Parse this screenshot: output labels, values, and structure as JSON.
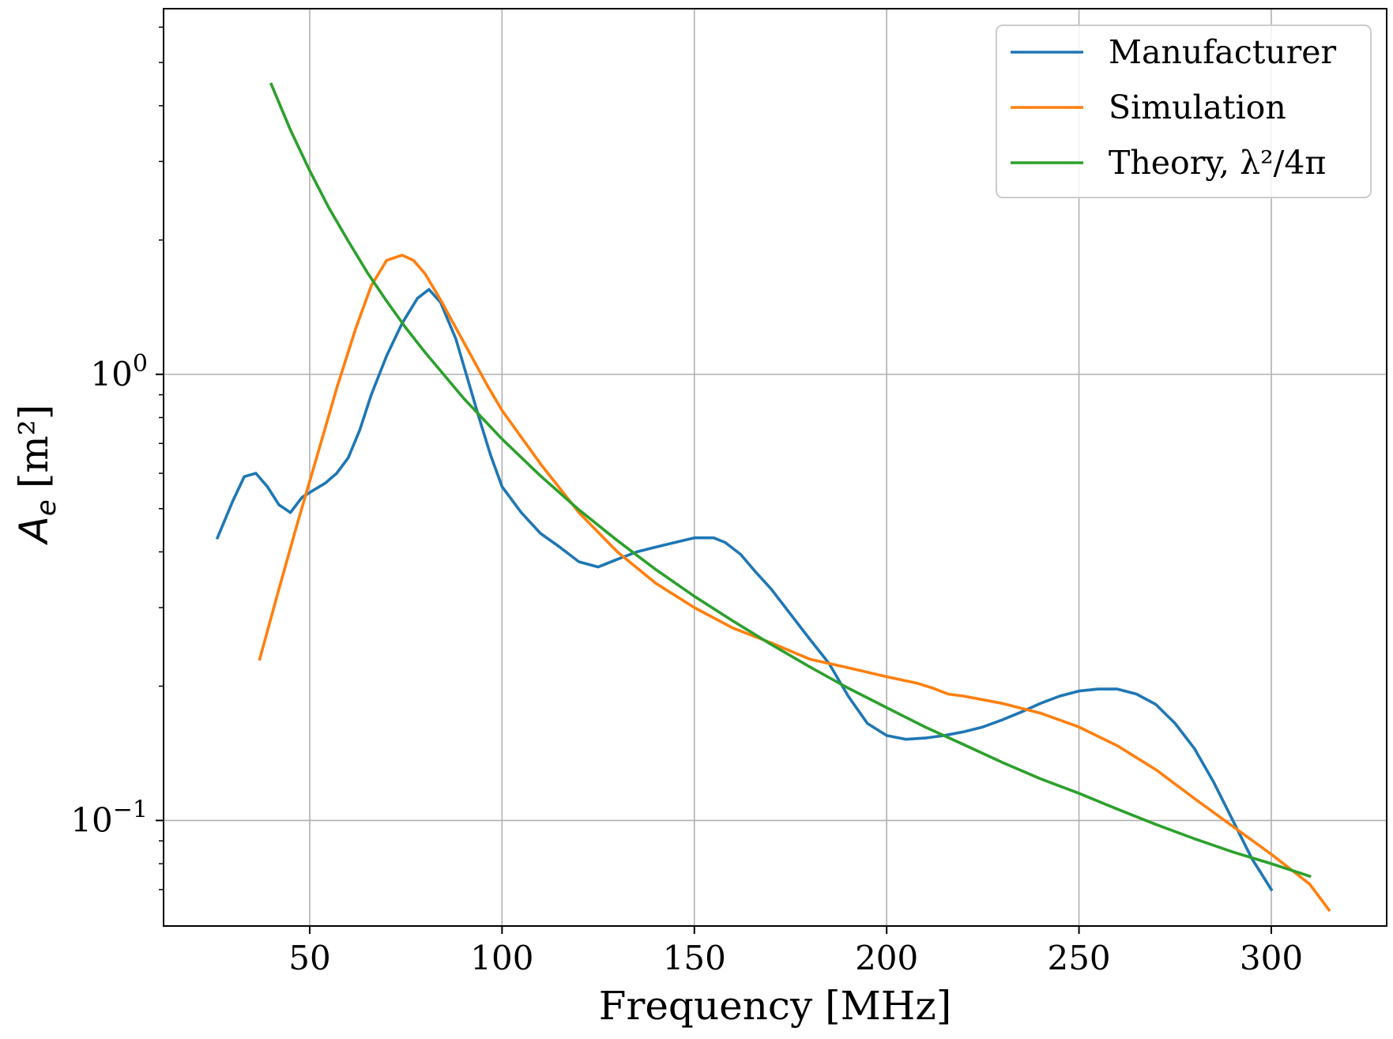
{
  "chart_data": {
    "type": "line",
    "xlabel": "Frequency [MHz]",
    "ylabel": {
      "symbol": "A",
      "subscript": "e",
      "unit": "[m²]"
    },
    "xlim": [
      12,
      330
    ],
    "ylim": [
      0.058,
      6.6
    ],
    "yscale": "log",
    "grid": true,
    "legend_position": "top-right",
    "x_ticks": [
      {
        "value": 50,
        "label": "50"
      },
      {
        "value": 100,
        "label": "100"
      },
      {
        "value": 150,
        "label": "150"
      },
      {
        "value": 200,
        "label": "200"
      },
      {
        "value": 250,
        "label": "250"
      },
      {
        "value": 300,
        "label": "300"
      }
    ],
    "y_ticks": [
      {
        "value": 1,
        "base": "10",
        "exp": "0"
      },
      {
        "value": 0.1,
        "base": "10",
        "exp": "−1"
      }
    ],
    "y_minor_ticks": [
      0.07,
      0.08,
      0.09,
      0.2,
      0.3,
      0.4,
      0.5,
      0.6,
      0.7,
      0.8,
      0.9,
      2,
      3,
      4,
      5,
      6
    ],
    "series": [
      {
        "name": "Manufacturer",
        "color": "#1f77b4",
        "x": [
          26,
          30,
          33,
          36,
          39,
          42,
          45,
          48,
          51,
          54,
          57,
          60,
          63,
          66,
          70,
          74,
          78,
          81,
          84,
          88,
          91,
          94,
          97,
          100,
          105,
          110,
          115,
          120,
          125,
          130,
          135,
          140,
          145,
          150,
          155,
          158,
          162,
          166,
          170,
          175,
          180,
          185,
          190,
          195,
          200,
          205,
          210,
          215,
          220,
          225,
          230,
          235,
          240,
          245,
          250,
          255,
          260,
          265,
          270,
          275,
          280,
          285,
          290,
          295,
          297,
          300
        ],
        "y": [
          0.43,
          0.52,
          0.59,
          0.6,
          0.56,
          0.51,
          0.49,
          0.53,
          0.55,
          0.57,
          0.6,
          0.65,
          0.75,
          0.9,
          1.1,
          1.3,
          1.48,
          1.55,
          1.45,
          1.2,
          0.98,
          0.8,
          0.66,
          0.56,
          0.49,
          0.44,
          0.41,
          0.38,
          0.37,
          0.385,
          0.4,
          0.41,
          0.42,
          0.43,
          0.43,
          0.42,
          0.395,
          0.36,
          0.33,
          0.29,
          0.255,
          0.225,
          0.19,
          0.165,
          0.155,
          0.152,
          0.153,
          0.155,
          0.158,
          0.162,
          0.168,
          0.175,
          0.183,
          0.19,
          0.195,
          0.197,
          0.197,
          0.192,
          0.182,
          0.165,
          0.145,
          0.122,
          0.1,
          0.082,
          0.077,
          0.07
        ]
      },
      {
        "name": "Simulation",
        "color": "#ff7f0e",
        "x": [
          37,
          42,
          47,
          52,
          57,
          62,
          66,
          70,
          74,
          77,
          80,
          84,
          88,
          92,
          96,
          100,
          110,
          120,
          130,
          140,
          150,
          160,
          170,
          180,
          190,
          200,
          208,
          212,
          216,
          220,
          230,
          240,
          250,
          260,
          270,
          280,
          290,
          300,
          310,
          315
        ],
        "y": [
          0.23,
          0.33,
          0.47,
          0.66,
          0.93,
          1.27,
          1.58,
          1.8,
          1.85,
          1.8,
          1.68,
          1.47,
          1.27,
          1.1,
          0.95,
          0.83,
          0.63,
          0.49,
          0.4,
          0.34,
          0.3,
          0.27,
          0.25,
          0.23,
          0.22,
          0.21,
          0.203,
          0.198,
          0.192,
          0.19,
          0.183,
          0.174,
          0.162,
          0.147,
          0.13,
          0.112,
          0.097,
          0.084,
          0.072,
          0.063
        ]
      },
      {
        "name": "Theory, λ²/4π",
        "color": "#2ca02c",
        "x": [
          40,
          45,
          50,
          55,
          60,
          65,
          70,
          75,
          80,
          90,
          100,
          110,
          120,
          130,
          140,
          150,
          160,
          170,
          180,
          190,
          200,
          210,
          220,
          230,
          240,
          250,
          260,
          270,
          280,
          290,
          300,
          310
        ],
        "y": [
          4.47,
          3.53,
          2.86,
          2.36,
          1.99,
          1.69,
          1.46,
          1.27,
          1.12,
          0.884,
          0.716,
          0.592,
          0.497,
          0.424,
          0.365,
          0.318,
          0.28,
          0.248,
          0.221,
          0.198,
          0.179,
          0.162,
          0.148,
          0.135,
          0.124,
          0.115,
          0.106,
          0.098,
          0.091,
          0.085,
          0.08,
          0.075
        ]
      }
    ]
  }
}
